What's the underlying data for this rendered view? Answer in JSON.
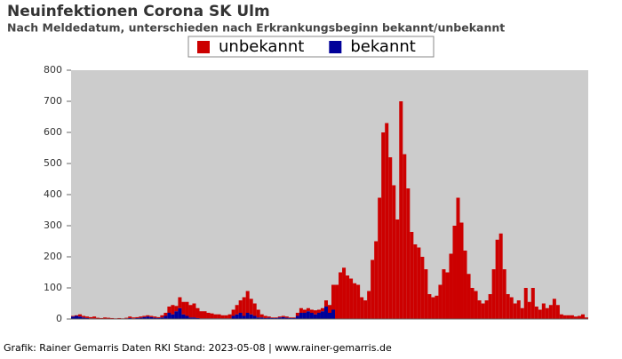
{
  "chart_data": {
    "type": "stacked_bar",
    "title": "Neuinfektionen Corona SK Ulm",
    "subtitle": "Nach Meldedatum, unterschieden nach Erkrankungsbeginn bekannt/unbekannt",
    "footer": "Grafik: Rainer Gemarris Daten RKI Stand: 2023-05-08 | www.rainer-gemarris.de",
    "ylim": [
      0,
      800
    ],
    "yticks": [
      0,
      100,
      200,
      300,
      400,
      500,
      600,
      700,
      800
    ],
    "legend_position": "top",
    "series": [
      {
        "name": "bekannt",
        "color": "#000099",
        "values": [
          8,
          10,
          8,
          5,
          3,
          2,
          2,
          1,
          0,
          1,
          1,
          0,
          0,
          1,
          0,
          2,
          3,
          2,
          3,
          4,
          6,
          8,
          6,
          4,
          3,
          5,
          10,
          20,
          15,
          25,
          35,
          15,
          10,
          5,
          5,
          3,
          2,
          2,
          2,
          2,
          2,
          2,
          2,
          2,
          2,
          10,
          15,
          20,
          10,
          20,
          15,
          10,
          5,
          5,
          3,
          4,
          3,
          3,
          5,
          6,
          4,
          3,
          3,
          10,
          20,
          20,
          25,
          20,
          15,
          20,
          25,
          40,
          20,
          30,
          0,
          0,
          0,
          0,
          0,
          0,
          0,
          0,
          0,
          0,
          0,
          0,
          0,
          0,
          0,
          0,
          0,
          0,
          0,
          0,
          0,
          0,
          0,
          0,
          0,
          0,
          0,
          0,
          0,
          0,
          0,
          0,
          0,
          0,
          0,
          0,
          0,
          0,
          0,
          0,
          0,
          0,
          0,
          0,
          0,
          0,
          0,
          0,
          0,
          0,
          0,
          0,
          0,
          0,
          0,
          0,
          0,
          0,
          0,
          0,
          0,
          0,
          0,
          0,
          0,
          0,
          0,
          0,
          0,
          0,
          0
        ]
      },
      {
        "name": "unbekannt",
        "color": "#cc0000",
        "values": [
          2,
          2,
          7,
          5,
          5,
          4,
          6,
          3,
          3,
          4,
          3,
          3,
          2,
          2,
          2,
          2,
          5,
          3,
          3,
          4,
          4,
          4,
          4,
          4,
          3,
          7,
          10,
          20,
          30,
          17,
          35,
          40,
          45,
          40,
          45,
          32,
          23,
          23,
          18,
          16,
          13,
          13,
          10,
          10,
          13,
          20,
          30,
          40,
          60,
          70,
          50,
          40,
          25,
          10,
          7,
          4,
          2,
          2,
          3,
          4,
          4,
          2,
          2,
          10,
          15,
          10,
          10,
          10,
          13,
          10,
          10,
          20,
          25,
          80,
          110,
          150,
          165,
          140,
          130,
          115,
          110,
          70,
          60,
          90,
          190,
          250,
          390,
          600,
          630,
          520,
          430,
          320,
          700,
          530,
          420,
          280,
          240,
          230,
          200,
          160,
          80,
          70,
          75,
          110,
          160,
          150,
          210,
          300,
          390,
          310,
          220,
          145,
          100,
          90,
          60,
          50,
          60,
          80,
          160,
          255,
          275,
          160,
          80,
          70,
          50,
          60,
          35,
          100,
          55,
          100,
          40,
          30,
          50,
          35,
          45,
          65,
          45,
          15,
          12,
          12,
          12,
          8,
          10,
          15,
          5
        ]
      }
    ]
  }
}
